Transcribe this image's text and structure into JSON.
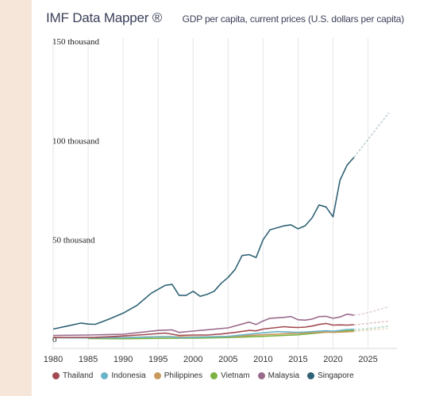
{
  "header": {
    "brand": "IMF Data Mapper ®",
    "indicator": "GDP per capita, current prices (U.S. dollars per capita)"
  },
  "chart_data": {
    "type": "line",
    "title": "GDP per capita, current prices (U.S. dollars per capita)",
    "xlabel": "",
    "ylabel": "",
    "xlim": [
      1980,
      2028
    ],
    "ylim": [
      0,
      150000
    ],
    "x_ticks": [
      "1980",
      "1985",
      "1990",
      "1995",
      "2000",
      "2005",
      "2010",
      "2015",
      "2020",
      "2025"
    ],
    "y_ticks": [
      {
        "value": 0,
        "label": "0"
      },
      {
        "value": 50000,
        "label": "50 thousand"
      },
      {
        "value": 100000,
        "label": "100 thousand"
      },
      {
        "value": 150000,
        "label": "150 thousand"
      }
    ],
    "grid": "vertical",
    "legend_position": "bottom",
    "actual_end_year": 2023,
    "series": [
      {
        "name": "Thailand",
        "color": "#a14a52",
        "x": [
          1980,
          1983,
          1986,
          1988,
          1990,
          1993,
          1996,
          1998,
          2000,
          2002,
          2004,
          2006,
          2008,
          2009,
          2010,
          2011,
          2012,
          2013,
          2014,
          2015,
          2016,
          2017,
          2018,
          2019,
          2020,
          2021,
          2022,
          2023,
          2024,
          2025,
          2026,
          2027,
          2028
        ],
        "values": [
          700,
          800,
          850,
          1100,
          1500,
          2200,
          3000,
          1800,
          2000,
          2000,
          2500,
          3300,
          4300,
          4100,
          5000,
          5400,
          5800,
          6200,
          5900,
          5800,
          6000,
          6500,
          7300,
          7800,
          7000,
          7100,
          7000,
          7200,
          7500,
          7800,
          8200,
          8600,
          9000
        ]
      },
      {
        "name": "Indonesia",
        "color": "#6ab4c8",
        "x": [
          1980,
          1985,
          1990,
          1995,
          1997,
          1998,
          2000,
          2005,
          2010,
          2012,
          2015,
          2019,
          2020,
          2022,
          2023,
          2024,
          2025,
          2026,
          2027,
          2028
        ],
        "values": [
          600,
          550,
          650,
          1100,
          1200,
          500,
          800,
          1300,
          3100,
          3700,
          3300,
          4150,
          3900,
          4800,
          4900,
          5100,
          5400,
          5800,
          6200,
          6600
        ]
      },
      {
        "name": "Philippines",
        "color": "#c9985c",
        "x": [
          1980,
          1985,
          1990,
          1995,
          2000,
          2005,
          2010,
          2015,
          2019,
          2020,
          2022,
          2023,
          2024,
          2025,
          2026,
          2027,
          2028
        ],
        "values": [
          750,
          550,
          700,
          1100,
          1050,
          1200,
          2100,
          2900,
          3500,
          3300,
          3600,
          3800,
          4100,
          4400,
          4700,
          5000,
          5400
        ]
      },
      {
        "name": "Vietnam",
        "color": "#7cb342",
        "x": [
          1985,
          1990,
          1995,
          2000,
          2005,
          2010,
          2015,
          2019,
          2020,
          2022,
          2023,
          2024,
          2025,
          2026,
          2027,
          2028
        ],
        "values": [
          200,
          100,
          300,
          400,
          700,
          1300,
          2100,
          3400,
          3500,
          4100,
          4300,
          4600,
          5000,
          5400,
          5900,
          6400
        ]
      },
      {
        "name": "Malaysia",
        "color": "#9a6a8c",
        "x": [
          1980,
          1985,
          1990,
          1995,
          1997,
          1998,
          2000,
          2005,
          2008,
          2009,
          2010,
          2011,
          2013,
          2014,
          2015,
          2016,
          2017,
          2018,
          2019,
          2020,
          2021,
          2022,
          2023,
          2024,
          2025,
          2026,
          2027,
          2028
        ],
        "values": [
          1800,
          2000,
          2400,
          4300,
          4600,
          3300,
          4000,
          5600,
          8500,
          7300,
          9100,
          10400,
          10900,
          11300,
          9700,
          9500,
          10000,
          11300,
          11400,
          10400,
          11100,
          12500,
          12000,
          12500,
          13300,
          14200,
          15200,
          16300
        ]
      },
      {
        "name": "Singapore",
        "color": "#2f6375",
        "x": [
          1980,
          1982,
          1984,
          1985,
          1986,
          1988,
          1990,
          1992,
          1994,
          1996,
          1997,
          1998,
          1999,
          2000,
          2001,
          2002,
          2003,
          2004,
          2005,
          2006,
          2007,
          2008,
          2009,
          2010,
          2011,
          2012,
          2013,
          2014,
          2015,
          2016,
          2017,
          2018,
          2019,
          2020,
          2021,
          2022,
          2023,
          2024,
          2025,
          2026,
          2027,
          2028
        ],
        "values": [
          5000,
          6500,
          8000,
          7500,
          7400,
          10000,
          13000,
          17000,
          23000,
          27000,
          27500,
          22000,
          22000,
          24000,
          21500,
          22500,
          24000,
          28000,
          31000,
          35000,
          42000,
          42500,
          41000,
          50000,
          55000,
          56000,
          57000,
          57500,
          55500,
          57000,
          61000,
          67500,
          66500,
          61500,
          80000,
          87500,
          91500,
          96000,
          100500,
          105000,
          109500,
          114000
        ]
      }
    ]
  }
}
